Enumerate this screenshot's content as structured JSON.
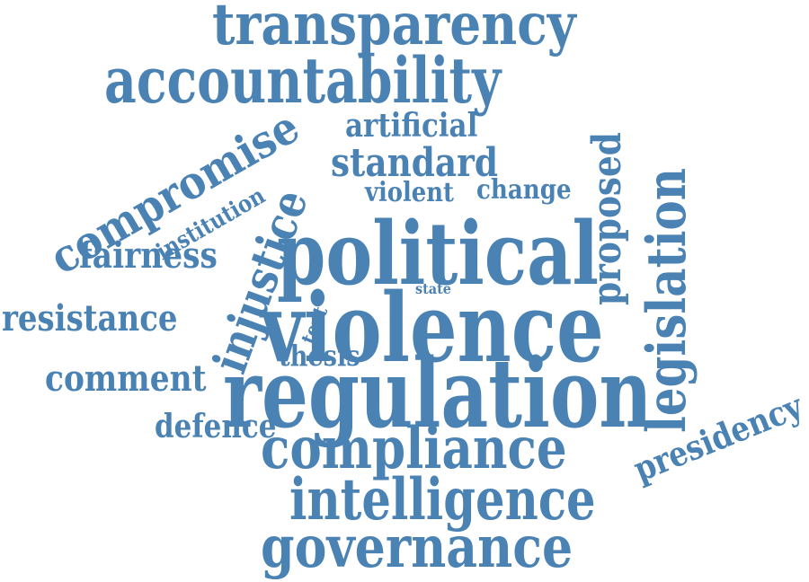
{
  "color": "#4a82b4",
  "words": {
    "transparency": "transparency",
    "accountability": "accountability",
    "compromise": "compromise",
    "artificial": "artificial",
    "standard": "standard",
    "proposed": "proposed",
    "institution": "institution",
    "violent": "violent",
    "change": "change",
    "legislation": "legislation",
    "injustice": "injustice",
    "fairness": "fairness",
    "political": "political",
    "state": "state",
    "resistance": "resistance",
    "violence": "violence",
    "text": "text",
    "thesis": "thesis",
    "comment": "comment",
    "regulation": "regulation",
    "defence": "defence",
    "presidency": "presidency",
    "compliance": "compliance",
    "intelligence": "intelligence",
    "governance": "governance"
  }
}
